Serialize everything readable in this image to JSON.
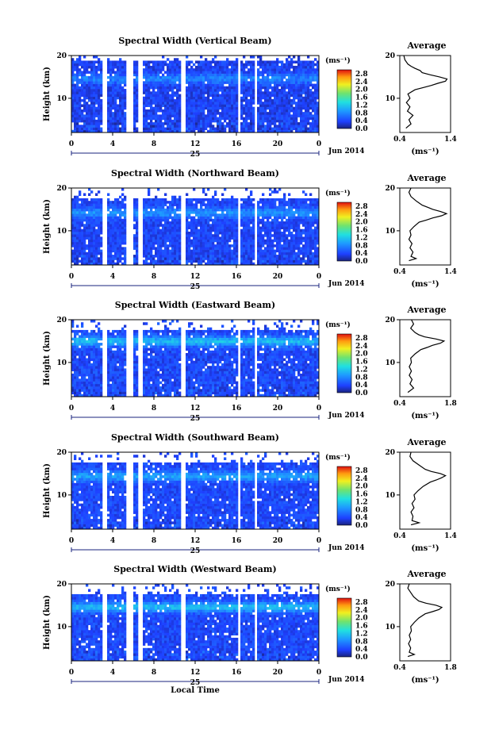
{
  "chart_data": [
    {
      "type": "heatmap",
      "title": "Spectral Width (Vertical Beam)",
      "ylabel": "Height (km)",
      "ylim": [
        2,
        20
      ],
      "yticks": [
        "20",
        "10"
      ],
      "xlim": [
        0,
        24
      ],
      "xticks": [
        "0",
        "4",
        "8",
        "12",
        "16",
        "20",
        "0"
      ],
      "day_label": "25",
      "month_label": "Jun 2014",
      "gaps_hours": [
        [
          3.0,
          3.4
        ],
        [
          5.3,
          5.9
        ],
        [
          6.5,
          6.9
        ],
        [
          10.6,
          11.0
        ],
        [
          16.1,
          16.4
        ],
        [
          17.7,
          18.0
        ]
      ],
      "features": {
        "top_km": 18.7,
        "noise": 0.35,
        "base": 0.35,
        "peak": 0.75,
        "peak_h": 14.6
      },
      "colorbar": {
        "unit": "(ms⁻¹)",
        "min": 0.0,
        "max": 3.0,
        "ticks": [
          "2.8",
          "2.4",
          "2.0",
          "1.6",
          "1.2",
          "0.8",
          "0.4",
          "0.0"
        ]
      },
      "average": {
        "label": "Average",
        "xlabel": "(ms⁻¹)",
        "xlim": [
          0.4,
          1.4
        ],
        "xticks": [
          "0.4",
          "1.4"
        ],
        "ylim": [
          2,
          20
        ],
        "yticks": [
          "20",
          "10"
        ],
        "profile": [
          [
            3,
            0.52
          ],
          [
            4,
            0.62
          ],
          [
            5,
            0.58
          ],
          [
            6,
            0.66
          ],
          [
            7,
            0.55
          ],
          [
            8,
            0.6
          ],
          [
            9,
            0.53
          ],
          [
            10,
            0.6
          ],
          [
            11,
            0.56
          ],
          [
            12,
            0.7
          ],
          [
            12.5,
            0.86
          ],
          [
            13,
            1.02
          ],
          [
            13.5,
            1.15
          ],
          [
            14,
            1.3
          ],
          [
            14.5,
            1.33
          ],
          [
            15,
            1.18
          ],
          [
            15.5,
            1.0
          ],
          [
            16,
            0.84
          ],
          [
            16.5,
            0.8
          ],
          [
            17,
            0.7
          ],
          [
            17.5,
            0.62
          ],
          [
            18,
            0.56
          ],
          [
            19,
            0.5
          ],
          [
            20,
            0.48
          ]
        ]
      }
    },
    {
      "type": "heatmap",
      "title": "Spectral Width (Northward Beam)",
      "ylabel": "Height (km)",
      "ylim": [
        2,
        20
      ],
      "yticks": [
        "20",
        "10"
      ],
      "xlim": [
        0,
        24
      ],
      "xticks": [
        "0",
        "4",
        "8",
        "12",
        "16",
        "20",
        "0"
      ],
      "day_label": "25",
      "month_label": "Jun 2014",
      "gaps_hours": [
        [
          3.0,
          3.4
        ],
        [
          5.3,
          5.9
        ],
        [
          6.5,
          6.9
        ],
        [
          10.6,
          11.0
        ],
        [
          16.1,
          16.4
        ],
        [
          17.7,
          18.0
        ]
      ],
      "features": {
        "top_km": 17.8,
        "noise": 0.3,
        "base": 0.38,
        "peak": 0.85,
        "peak_h": 14.2
      },
      "colorbar": {
        "unit": "(ms⁻¹)",
        "min": 0.0,
        "max": 3.0,
        "ticks": [
          "2.8",
          "2.4",
          "2.0",
          "1.6",
          "1.2",
          "0.8",
          "0.4",
          "0.0"
        ]
      },
      "average": {
        "label": "Average",
        "xlabel": "(ms⁻¹)",
        "xlim": [
          0.4,
          1.4
        ],
        "xticks": [
          "0.4",
          "1.4"
        ],
        "ylim": [
          2,
          20
        ],
        "yticks": [
          "20",
          "10"
        ],
        "profile": [
          [
            3,
            0.58
          ],
          [
            3.5,
            0.72
          ],
          [
            4,
            0.62
          ],
          [
            5,
            0.66
          ],
          [
            6,
            0.6
          ],
          [
            7,
            0.64
          ],
          [
            8,
            0.58
          ],
          [
            9,
            0.62
          ],
          [
            10,
            0.6
          ],
          [
            11,
            0.68
          ],
          [
            12,
            0.78
          ],
          [
            12.5,
            0.92
          ],
          [
            13,
            1.05
          ],
          [
            13.5,
            1.22
          ],
          [
            14,
            1.32
          ],
          [
            14.5,
            1.2
          ],
          [
            15,
            1.05
          ],
          [
            15.5,
            0.95
          ],
          [
            16,
            0.84
          ],
          [
            17,
            0.72
          ],
          [
            18,
            0.62
          ],
          [
            19,
            0.58
          ],
          [
            20,
            0.62
          ]
        ]
      }
    },
    {
      "type": "heatmap",
      "title": "Spectral Width (Eastward Beam)",
      "ylabel": "Height (km)",
      "ylim": [
        2,
        20
      ],
      "yticks": [
        "20",
        "10"
      ],
      "xlim": [
        0,
        24
      ],
      "xticks": [
        "0",
        "4",
        "8",
        "12",
        "16",
        "20",
        "0"
      ],
      "day_label": "25",
      "month_label": "Jun 2014",
      "gaps_hours": [
        [
          3.0,
          3.4
        ],
        [
          5.3,
          5.9
        ],
        [
          6.5,
          6.9
        ],
        [
          10.6,
          11.0
        ],
        [
          16.1,
          16.4
        ],
        [
          17.7,
          18.0
        ]
      ],
      "features": {
        "top_km": 17.5,
        "noise": 0.35,
        "base": 0.4,
        "peak": 1.1,
        "peak_h": 15.0
      },
      "colorbar": {
        "unit": "(ms⁻¹)",
        "min": 0.0,
        "max": 3.0,
        "ticks": [
          "2.8",
          "2.4",
          "2.0",
          "1.6",
          "1.2",
          "0.8",
          "0.4",
          "0.0"
        ]
      },
      "average": {
        "label": "Average",
        "xlabel": "(ms⁻¹)",
        "xlim": [
          0.4,
          1.8
        ],
        "xticks": [
          "0.4",
          "1.8"
        ],
        "ylim": [
          2,
          20
        ],
        "yticks": [
          "20",
          "10"
        ],
        "profile": [
          [
            3,
            0.62
          ],
          [
            4,
            0.78
          ],
          [
            5,
            0.68
          ],
          [
            6,
            0.74
          ],
          [
            7,
            0.66
          ],
          [
            8,
            0.72
          ],
          [
            9,
            0.66
          ],
          [
            10,
            0.72
          ],
          [
            11,
            0.7
          ],
          [
            12,
            0.82
          ],
          [
            13,
            0.98
          ],
          [
            13.5,
            1.15
          ],
          [
            14,
            1.3
          ],
          [
            14.5,
            1.52
          ],
          [
            15,
            1.62
          ],
          [
            15.5,
            1.4
          ],
          [
            16,
            1.08
          ],
          [
            16.5,
            0.92
          ],
          [
            17,
            0.82
          ],
          [
            18,
            0.7
          ],
          [
            19,
            0.78
          ],
          [
            20,
            0.72
          ]
        ]
      }
    },
    {
      "type": "heatmap",
      "title": "Spectral Width (Southward Beam)",
      "ylabel": "Height (km)",
      "ylim": [
        2,
        20
      ],
      "yticks": [
        "20",
        "10"
      ],
      "xlim": [
        0,
        24
      ],
      "xticks": [
        "0",
        "4",
        "8",
        "12",
        "16",
        "20",
        "0"
      ],
      "day_label": "25",
      "month_label": "Jun 2014",
      "gaps_hours": [
        [
          3.0,
          3.4
        ],
        [
          5.3,
          5.9
        ],
        [
          6.5,
          6.9
        ],
        [
          10.6,
          11.0
        ],
        [
          16.1,
          16.4
        ],
        [
          17.7,
          18.0
        ]
      ],
      "features": {
        "top_km": 17.8,
        "noise": 0.3,
        "base": 0.4,
        "peak": 0.95,
        "peak_h": 14.4
      },
      "colorbar": {
        "unit": "(ms⁻¹)",
        "min": 0.0,
        "max": 3.0,
        "ticks": [
          "2.8",
          "2.4",
          "2.0",
          "1.6",
          "1.2",
          "0.8",
          "0.4",
          "0.0"
        ]
      },
      "average": {
        "label": "Average",
        "xlabel": "(ms⁻¹)",
        "xlim": [
          0.4,
          1.4
        ],
        "xticks": [
          "0.4",
          "1.4"
        ],
        "ylim": [
          2,
          20
        ],
        "yticks": [
          "20",
          "10"
        ],
        "profile": [
          [
            3,
            0.62
          ],
          [
            3.5,
            0.78
          ],
          [
            4,
            0.64
          ],
          [
            5,
            0.66
          ],
          [
            6,
            0.62
          ],
          [
            7,
            0.68
          ],
          [
            8,
            0.64
          ],
          [
            9,
            0.7
          ],
          [
            10,
            0.68
          ],
          [
            11,
            0.76
          ],
          [
            12,
            0.86
          ],
          [
            13,
            1.0
          ],
          [
            13.5,
            1.12
          ],
          [
            14,
            1.22
          ],
          [
            14.5,
            1.3
          ],
          [
            15,
            1.2
          ],
          [
            15.5,
            1.02
          ],
          [
            16,
            0.9
          ],
          [
            17,
            0.78
          ],
          [
            18,
            0.66
          ],
          [
            19,
            0.6
          ],
          [
            20,
            0.62
          ]
        ]
      }
    },
    {
      "type": "heatmap",
      "title": "Spectral Width (Westward Beam)",
      "ylabel": "Height (km)",
      "ylim": [
        2,
        20
      ],
      "yticks": [
        "20",
        "10"
      ],
      "xlim": [
        0,
        24
      ],
      "xticks": [
        "0",
        "4",
        "8",
        "12",
        "16",
        "20",
        "0"
      ],
      "day_label": "25",
      "month_label": "Jun 2014",
      "xlabel": "Local Time",
      "gaps_hours": [
        [
          3.0,
          3.4
        ],
        [
          5.3,
          5.9
        ],
        [
          6.5,
          6.9
        ],
        [
          10.6,
          11.0
        ],
        [
          16.1,
          16.4
        ],
        [
          17.7,
          18.0
        ]
      ],
      "features": {
        "top_km": 17.6,
        "noise": 0.32,
        "base": 0.4,
        "peak": 1.1,
        "peak_h": 14.6
      },
      "colorbar": {
        "unit": "(ms⁻¹)",
        "min": 0.0,
        "max": 3.0,
        "ticks": [
          "2.8",
          "2.4",
          "2.0",
          "1.6",
          "1.2",
          "0.8",
          "0.4",
          "0.0"
        ]
      },
      "average": {
        "label": "Average",
        "xlabel": "(ms⁻¹)",
        "xlim": [
          0.4,
          1.8
        ],
        "xticks": [
          "0.4",
          "1.8"
        ],
        "ylim": [
          2,
          20
        ],
        "yticks": [
          "20",
          "10"
        ],
        "profile": [
          [
            3,
            0.62
          ],
          [
            3.5,
            0.8
          ],
          [
            4,
            0.66
          ],
          [
            5,
            0.7
          ],
          [
            6,
            0.64
          ],
          [
            7,
            0.7
          ],
          [
            8,
            0.66
          ],
          [
            9,
            0.72
          ],
          [
            10,
            0.7
          ],
          [
            11,
            0.8
          ],
          [
            12,
            0.92
          ],
          [
            13,
            1.1
          ],
          [
            13.5,
            1.3
          ],
          [
            14,
            1.48
          ],
          [
            14.5,
            1.56
          ],
          [
            15,
            1.4
          ],
          [
            15.5,
            1.12
          ],
          [
            16,
            0.92
          ],
          [
            17,
            0.78
          ],
          [
            18,
            0.7
          ],
          [
            19,
            0.62
          ],
          [
            20,
            0.66
          ]
        ]
      }
    }
  ]
}
